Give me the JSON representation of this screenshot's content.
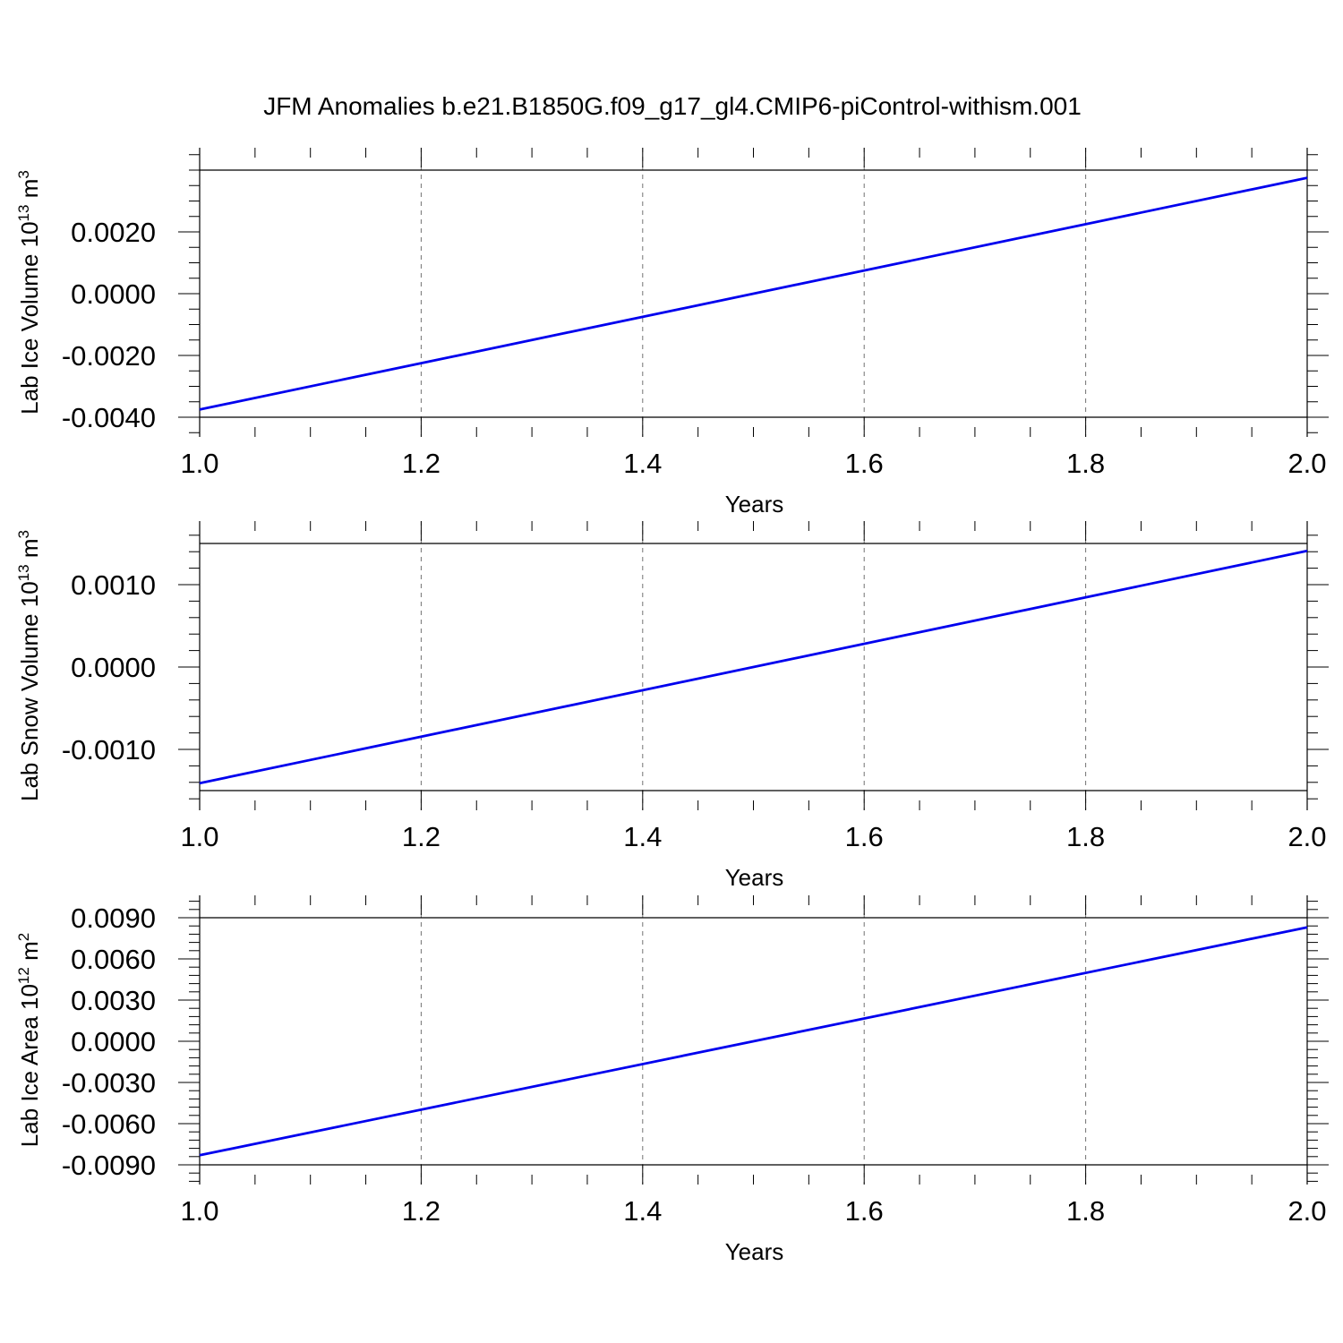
{
  "title": "JFM Anomalies b.e21.B1850G.f09_g17_gl4.CMIP6-piControl-withism.001",
  "colors": {
    "series": "#0000ee",
    "axis": "#000000",
    "grid": "#000000"
  },
  "chart_data": [
    {
      "type": "line",
      "ylabel": {
        "text": "Lab Ice Volume 10",
        "exponent": "13",
        "unit": " m",
        "unit_exponent": "3"
      },
      "xlabel": "Years",
      "xlim": [
        1.0,
        2.0
      ],
      "ylim": [
        -0.004,
        0.004
      ],
      "x_ticks": [
        1.0,
        1.2,
        1.4,
        1.6,
        1.8,
        2.0
      ],
      "x_tick_labels": [
        "1.0",
        "1.2",
        "1.4",
        "1.6",
        "1.8",
        "2.0"
      ],
      "y_ticks": [
        -0.004,
        -0.002,
        0.0,
        0.002
      ],
      "y_tick_labels": [
        "-0.0040",
        "-0.0020",
        "0.0000",
        "0.0020"
      ],
      "y_minor_step": 0.0005,
      "grid": true,
      "series": [
        {
          "x": [
            1.0,
            2.0
          ],
          "y": [
            -0.00375,
            0.00375
          ]
        }
      ]
    },
    {
      "type": "line",
      "ylabel": {
        "text": "Lab Snow Volume 10",
        "exponent": "13",
        "unit": " m",
        "unit_exponent": "3"
      },
      "xlabel": "Years",
      "xlim": [
        1.0,
        2.0
      ],
      "ylim": [
        -0.0015,
        0.0015
      ],
      "x_ticks": [
        1.0,
        1.2,
        1.4,
        1.6,
        1.8,
        2.0
      ],
      "x_tick_labels": [
        "1.0",
        "1.2",
        "1.4",
        "1.6",
        "1.8",
        "2.0"
      ],
      "y_ticks": [
        -0.001,
        0.0,
        0.001
      ],
      "y_tick_labels": [
        "-0.0010",
        "0.0000",
        "0.0010"
      ],
      "y_minor_step": 0.0002,
      "grid": true,
      "series": [
        {
          "x": [
            1.0,
            2.0
          ],
          "y": [
            -0.00141,
            0.00141
          ]
        }
      ]
    },
    {
      "type": "line",
      "ylabel": {
        "text": "Lab Ice Area 10",
        "exponent": "12",
        "unit": " m",
        "unit_exponent": "2"
      },
      "xlabel": "Years",
      "xlim": [
        1.0,
        2.0
      ],
      "ylim": [
        -0.009,
        0.009
      ],
      "x_ticks": [
        1.0,
        1.2,
        1.4,
        1.6,
        1.8,
        2.0
      ],
      "x_tick_labels": [
        "1.0",
        "1.2",
        "1.4",
        "1.6",
        "1.8",
        "2.0"
      ],
      "y_ticks": [
        -0.009,
        -0.006,
        -0.003,
        0.0,
        0.003,
        0.006,
        0.009
      ],
      "y_tick_labels": [
        "-0.0090",
        "-0.0060",
        "-0.0030",
        "0.0000",
        "0.0030",
        "0.0060",
        "0.0090"
      ],
      "y_minor_step": 0.0006,
      "grid": true,
      "series": [
        {
          "x": [
            1.0,
            2.0
          ],
          "y": [
            -0.0083,
            0.0083
          ]
        }
      ]
    }
  ]
}
